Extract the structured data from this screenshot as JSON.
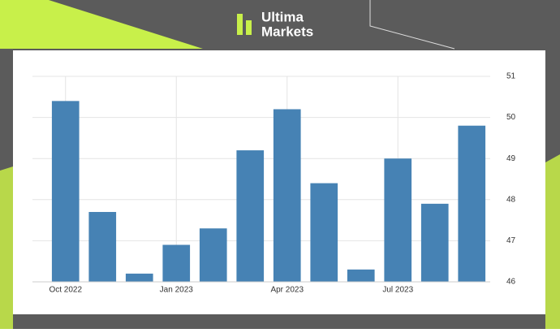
{
  "brand": {
    "line1": "Ultima",
    "line2": "Markets"
  },
  "chart_data": {
    "type": "bar",
    "categories": [
      "Oct 2022",
      null,
      null,
      "Jan 2023",
      null,
      null,
      "Apr 2023",
      null,
      null,
      "Jul 2023",
      null,
      null
    ],
    "values": [
      50.4,
      47.7,
      46.2,
      46.9,
      47.3,
      49.2,
      50.2,
      48.4,
      46.3,
      49.0,
      47.9,
      49.8
    ],
    "color": "#4682b4",
    "ylim": [
      46,
      51
    ],
    "yticks": [
      46,
      47,
      48,
      49,
      50,
      51
    ],
    "grid": true
  }
}
